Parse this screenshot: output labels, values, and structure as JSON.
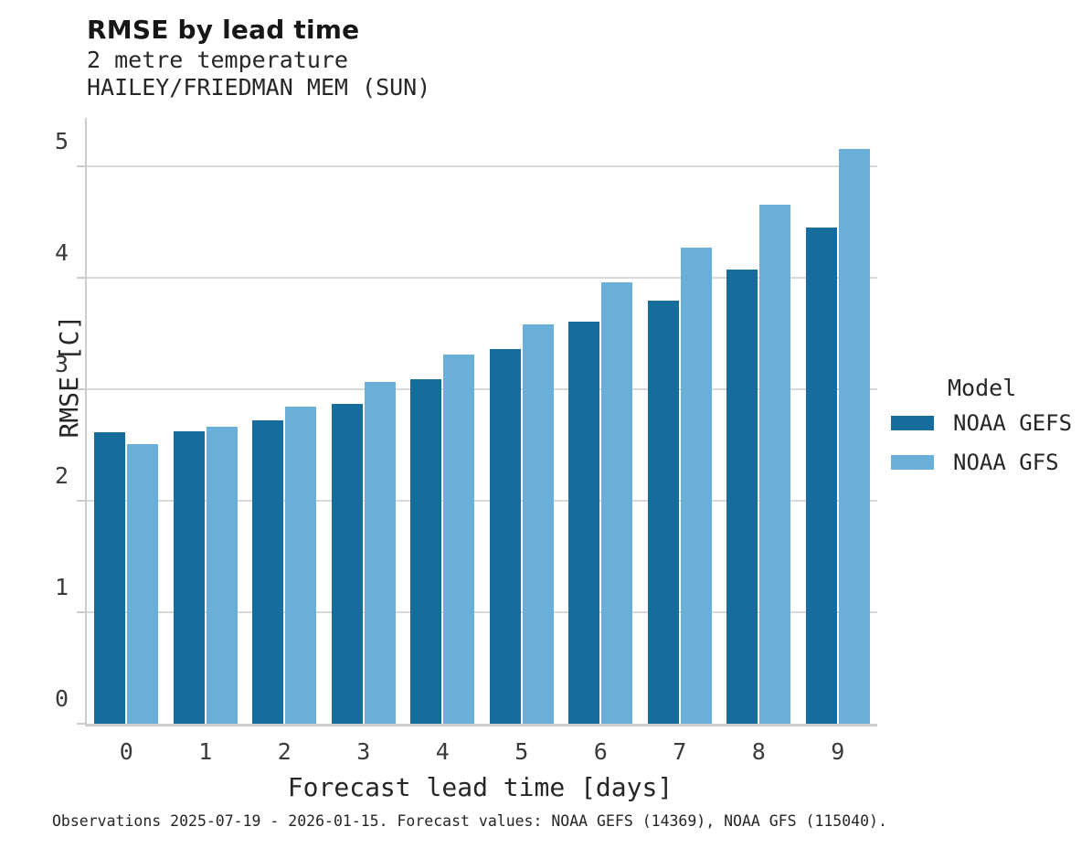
{
  "header": {
    "title": "RMSE by lead time",
    "subtitle_line1": "2 metre temperature",
    "subtitle_line2": "HAILEY/FRIEDMAN MEM (SUN)"
  },
  "footer": {
    "caption": "Observations 2025-07-19 - 2026-01-15. Forecast values: NOAA GEFS (14369), NOAA GFS (115040)."
  },
  "legend": {
    "title": "Model",
    "entries": [
      {
        "label": "NOAA GEFS",
        "color": "#166d9d"
      },
      {
        "label": "NOAA GFS",
        "color": "#6aafd7"
      }
    ]
  },
  "chart_data": {
    "type": "bar",
    "title": "RMSE by lead time",
    "subtitle": [
      "2 metre temperature",
      "HAILEY/FRIEDMAN MEM (SUN)"
    ],
    "categories": [
      "0",
      "1",
      "2",
      "3",
      "4",
      "5",
      "6",
      "7",
      "8",
      "9"
    ],
    "series": [
      {
        "name": "NOAA GEFS",
        "color": "#166d9d",
        "values": [
          2.61,
          2.62,
          2.72,
          2.87,
          3.09,
          3.36,
          3.6,
          3.79,
          4.07,
          4.45
        ]
      },
      {
        "name": "NOAA GFS",
        "color": "#6aafd7",
        "values": [
          2.51,
          2.66,
          2.84,
          3.06,
          3.31,
          3.58,
          3.96,
          4.27,
          4.65,
          5.15
        ]
      }
    ],
    "xlabel": "Forecast lead time [days]",
    "ylabel": "RMSE [C]",
    "ylim": [
      0,
      5.43
    ],
    "yticks": [
      0,
      1,
      2,
      3,
      4,
      5
    ],
    "grid": true,
    "grid_color": "#d9d9d9",
    "legend_title": "Model",
    "legend_position": "right",
    "caption": "Observations 2025-07-19 - 2026-01-15. Forecast values: NOAA GEFS (14369), NOAA GFS (115040)."
  }
}
